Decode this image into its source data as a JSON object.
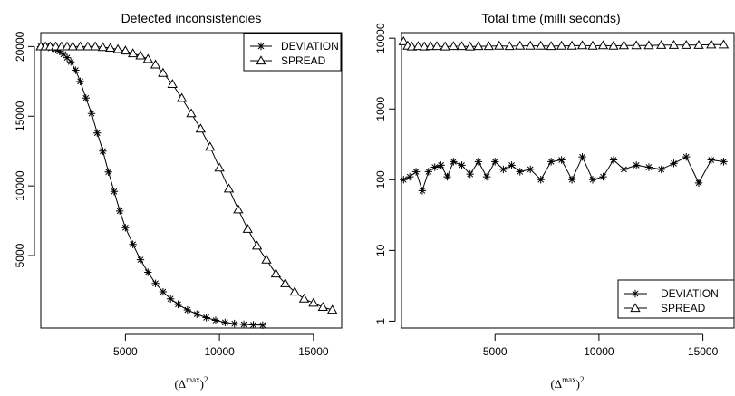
{
  "chart_data": [
    {
      "type": "line",
      "title": "Detected inconsistencies",
      "xlabel": {
        "base": "(Δ",
        "sup": "max",
        "close": ")",
        "power": "2"
      },
      "ylabel": "",
      "xlim": [
        500,
        16500
      ],
      "ylim": [
        -200,
        21000
      ],
      "yscale": "linear",
      "xticks": [
        5000,
        10000,
        15000
      ],
      "yticks": [
        5000,
        10000,
        15000,
        20000
      ],
      "legend": {
        "position": "top-right",
        "entries": [
          "DEVIATION",
          "SPREAD"
        ]
      },
      "series": [
        {
          "name": "DEVIATION",
          "marker": "asterisk",
          "x": [
            500,
            700,
            900,
            1100,
            1300,
            1500,
            1700,
            1900,
            2100,
            2350,
            2600,
            2900,
            3200,
            3500,
            3800,
            4100,
            4400,
            4700,
            5000,
            5400,
            5800,
            6200,
            6600,
            7000,
            7400,
            7800,
            8300,
            8800,
            9300,
            9800,
            10300,
            10800,
            11300,
            11800,
            12300
          ],
          "values": [
            20000,
            20000,
            19950,
            19900,
            19800,
            19650,
            19450,
            19200,
            18900,
            18300,
            17500,
            16300,
            15200,
            13800,
            12500,
            11000,
            9600,
            8200,
            7000,
            5800,
            4700,
            3800,
            3000,
            2400,
            1900,
            1500,
            1100,
            800,
            550,
            350,
            200,
            120,
            60,
            30,
            10
          ]
        },
        {
          "name": "SPREAD",
          "marker": "triangle",
          "x": [
            500,
            750,
            1000,
            1300,
            1600,
            1900,
            2200,
            2600,
            3000,
            3400,
            3800,
            4200,
            4600,
            5000,
            5400,
            5800,
            6200,
            6600,
            7000,
            7500,
            8000,
            8500,
            9000,
            9500,
            10000,
            10500,
            11000,
            11500,
            12000,
            12500,
            13000,
            13500,
            14000,
            14500,
            15000,
            15500,
            16000
          ],
          "values": [
            20000,
            20000,
            20000,
            20000,
            20000,
            20000,
            20000,
            20000,
            20000,
            20000,
            19950,
            19900,
            19800,
            19700,
            19500,
            19350,
            19100,
            18700,
            18100,
            17300,
            16300,
            15200,
            14100,
            12800,
            11300,
            9800,
            8300,
            6900,
            5700,
            4700,
            3700,
            3000,
            2400,
            1900,
            1600,
            1300,
            1100
          ]
        }
      ]
    },
    {
      "type": "line",
      "title": "Total time (milli seconds)",
      "xlabel": {
        "base": "(Δ",
        "sup": "max",
        "close": ")",
        "power": "2"
      },
      "ylabel": "",
      "xlim": [
        500,
        16500
      ],
      "ylim": [
        0.8,
        12000
      ],
      "yscale": "log",
      "xticks": [
        5000,
        10000,
        15000
      ],
      "yticks": [
        1,
        10,
        100,
        1000,
        10000
      ],
      "legend": {
        "position": "bottom-right",
        "entries": [
          "DEVIATION",
          "SPREAD"
        ]
      },
      "series": [
        {
          "name": "DEVIATION",
          "marker": "asterisk",
          "x": [
            600,
            900,
            1200,
            1500,
            1800,
            2100,
            2400,
            2700,
            3000,
            3400,
            3800,
            4200,
            4600,
            5000,
            5400,
            5800,
            6200,
            6700,
            7200,
            7700,
            8200,
            8700,
            9200,
            9700,
            10200,
            10700,
            11200,
            11800,
            12400,
            13000,
            13600,
            14200,
            14800,
            15400,
            16000
          ],
          "values": [
            100,
            110,
            130,
            70,
            130,
            150,
            160,
            110,
            180,
            160,
            120,
            180,
            110,
            180,
            140,
            160,
            130,
            140,
            100,
            180,
            190,
            100,
            210,
            100,
            110,
            190,
            140,
            160,
            150,
            140,
            170,
            210,
            90,
            190,
            180
          ]
        },
        {
          "name": "SPREAD",
          "marker": "triangle",
          "x": [
            600,
            800,
            1000,
            1300,
            1600,
            1900,
            2200,
            2600,
            3000,
            3400,
            3800,
            4200,
            4700,
            5200,
            5700,
            6200,
            6700,
            7200,
            7700,
            8200,
            8700,
            9200,
            9700,
            10200,
            10700,
            11200,
            11800,
            12400,
            13000,
            13600,
            14200,
            14800,
            15400,
            16000
          ],
          "values": [
            9000,
            7800,
            7600,
            7700,
            7600,
            7700,
            7700,
            7600,
            7700,
            7700,
            7600,
            7700,
            7700,
            7800,
            7700,
            7800,
            7800,
            7800,
            7700,
            7800,
            7800,
            7900,
            7800,
            7900,
            7800,
            7900,
            7900,
            7900,
            8000,
            8000,
            8000,
            8000,
            8100,
            8100
          ]
        }
      ]
    }
  ]
}
